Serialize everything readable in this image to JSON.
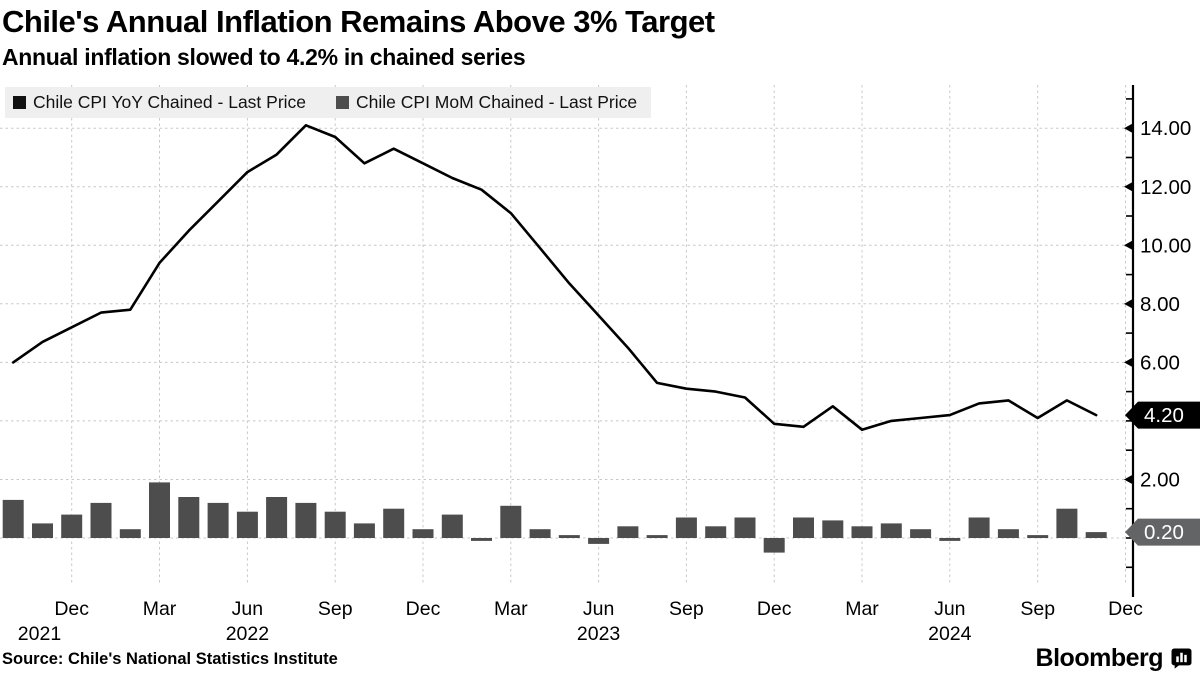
{
  "header": {
    "title": "Chile's Annual Inflation Remains Above 3% Target",
    "subtitle": "Annual inflation slowed to 4.2% in chained series"
  },
  "legend": [
    {
      "label": "Chile CPI YoY Chained - Last Price",
      "color": "#111111"
    },
    {
      "label": "Chile CPI MoM Chained - Last Price",
      "color": "#4d4d4d"
    }
  ],
  "chart_data": {
    "type": "mixed",
    "frequency": "monthly",
    "period_start": "Oct 2021",
    "period_end": "Nov 2024",
    "grid": true,
    "legend_position": "top-left",
    "series": [
      {
        "name": "Chile CPI YoY Chained - Last Price",
        "type": "line",
        "color": "#000000",
        "last_price": 4.2,
        "values": [
          6.0,
          6.7,
          7.2,
          7.7,
          7.8,
          9.4,
          10.5,
          11.5,
          12.5,
          13.1,
          14.1,
          13.7,
          12.8,
          13.3,
          12.8,
          12.3,
          11.9,
          11.1,
          9.9,
          8.7,
          7.6,
          6.5,
          5.3,
          5.1,
          5.0,
          4.8,
          3.9,
          3.8,
          4.5,
          3.7,
          4.0,
          4.1,
          4.2,
          4.6,
          4.7,
          4.1,
          4.7,
          4.2
        ]
      },
      {
        "name": "Chile CPI MoM Chained - Last Price",
        "type": "bar",
        "color": "#4d4d4d",
        "last_price": 0.2,
        "values": [
          1.3,
          0.5,
          0.8,
          1.2,
          0.3,
          1.9,
          1.4,
          1.2,
          0.9,
          1.4,
          1.2,
          0.9,
          0.5,
          1.0,
          0.3,
          0.8,
          -0.1,
          1.1,
          0.3,
          0.1,
          -0.2,
          0.4,
          0.1,
          0.7,
          0.4,
          0.7,
          -0.5,
          0.7,
          0.6,
          0.4,
          0.5,
          0.3,
          -0.1,
          0.7,
          0.3,
          0.1,
          1.0,
          0.2
        ]
      }
    ],
    "y_axis": {
      "side": "right",
      "ticks": [
        {
          "label": "14.00",
          "value": 14
        },
        {
          "label": "12.00",
          "value": 12
        },
        {
          "label": "10.00",
          "value": 10
        },
        {
          "label": "8.00",
          "value": 8
        },
        {
          "label": "6.00",
          "value": 6
        },
        {
          "label": "2.00",
          "value": 2
        }
      ],
      "grid_values": [
        0,
        2,
        4,
        6,
        8,
        10,
        12,
        14
      ],
      "minor_tick_step": 1,
      "range_approx": [
        -2,
        15.5
      ]
    },
    "last_price_tags": [
      {
        "label": "4.20",
        "value": 4.2,
        "bg": "#000000",
        "fg": "#ffffff"
      },
      {
        "label": "0.20",
        "value": 0.2,
        "bg": "#636466",
        "fg": "#ffffff"
      }
    ],
    "x_axis": {
      "quarter_ticks": [
        {
          "label": "Dec",
          "month_index": 2
        },
        {
          "label": "Mar",
          "month_index": 5
        },
        {
          "label": "Jun",
          "month_index": 8
        },
        {
          "label": "Sep",
          "month_index": 11
        },
        {
          "label": "Dec",
          "month_index": 14
        },
        {
          "label": "Mar",
          "month_index": 17
        },
        {
          "label": "Jun",
          "month_index": 20
        },
        {
          "label": "Sep",
          "month_index": 23
        },
        {
          "label": "Dec",
          "month_index": 26
        },
        {
          "label": "Mar",
          "month_index": 29
        },
        {
          "label": "Jun",
          "month_index": 32
        },
        {
          "label": "Sep",
          "month_index": 35
        },
        {
          "label": "Dec",
          "month_index": 38
        }
      ],
      "year_labels": [
        {
          "label": "2021",
          "month_index": 0.9
        },
        {
          "label": "2022",
          "month_index": 8
        },
        {
          "label": "2023",
          "month_index": 20
        },
        {
          "label": "2024",
          "month_index": 32
        }
      ]
    }
  },
  "footer": {
    "source": "Source: Chile's National Statistics Institute",
    "brand": "Bloomberg"
  }
}
